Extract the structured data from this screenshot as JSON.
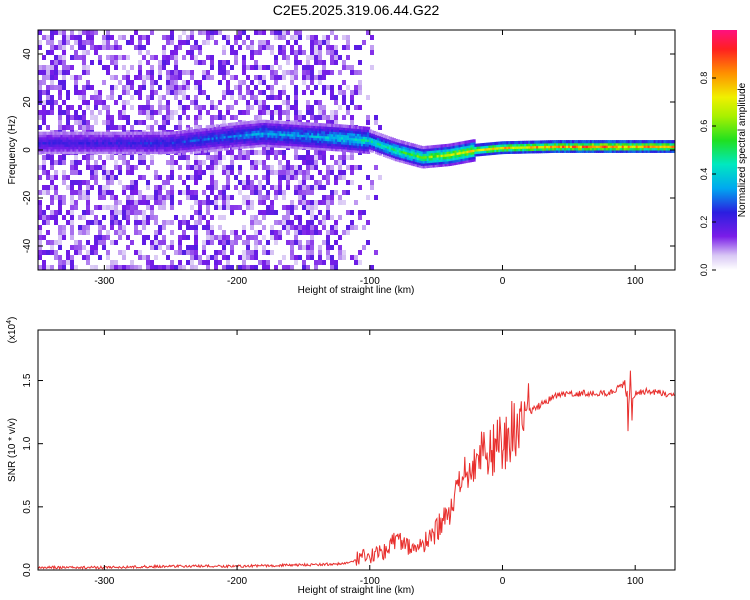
{
  "title": "C2E5.2025.319.06.44.G22",
  "chart_data": [
    {
      "type": "heatmap",
      "panel": "spectrogram",
      "xlabel": "Height of straight line (km)",
      "ylabel": "Frequency (Hz)",
      "xlim": [
        -350,
        130
      ],
      "ylim": [
        -50,
        50
      ],
      "x_ticks": [
        -300,
        -200,
        -100,
        0,
        100
      ],
      "x_tick_labels": [
        "-300",
        "-200",
        "-100",
        "0",
        "100"
      ],
      "y_ticks": [
        -40,
        -20,
        0,
        20,
        40
      ],
      "y_tick_labels": [
        "-40",
        "-20",
        "0",
        "20",
        "40"
      ],
      "ridge": {
        "x": [
          -350,
          -300,
          -250,
          -200,
          -180,
          -150,
          -120,
          -100,
          -80,
          -60,
          -40,
          -20,
          0,
          40,
          80,
          100,
          130
        ],
        "y": [
          3,
          3,
          3,
          6,
          7,
          6,
          5,
          4,
          0,
          -3,
          -2,
          0,
          1,
          1.5,
          1.5,
          1.5,
          1.5
        ],
        "amplitude": [
          0.25,
          0.25,
          0.28,
          0.35,
          0.4,
          0.38,
          0.45,
          0.5,
          0.55,
          0.65,
          0.75,
          0.8,
          0.85,
          0.9,
          0.95,
          0.9,
          0.9
        ]
      },
      "colorbar": {
        "label": "Normalized spectral amplitude",
        "range": [
          0,
          1
        ],
        "ticks": [
          0,
          0.2,
          0.4,
          0.6,
          0.8
        ],
        "tick_labels": [
          "0.0",
          "0.2",
          "0.4",
          "0.6",
          "0.8"
        ]
      }
    },
    {
      "type": "line",
      "panel": "snr",
      "xlabel": "Height of straight line (km)",
      "ylabel": "SNR (10 * v/v)",
      "scale_label": "(x10",
      "scale_exp": "4",
      "scale_close": ")",
      "xlim": [
        -350,
        130
      ],
      "ylim": [
        0,
        1.9
      ],
      "x_ticks": [
        -300,
        -200,
        -100,
        0,
        100
      ],
      "x_tick_labels": [
        "-300",
        "-200",
        "-100",
        "0",
        "100"
      ],
      "y_ticks": [
        0,
        0.5,
        1.0,
        1.5
      ],
      "y_tick_labels": [
        "0.0",
        "0.5",
        "1.0",
        "1.5"
      ],
      "color": "#e8302e",
      "series": [
        {
          "name": "SNR",
          "x": [
            -350,
            -300,
            -250,
            -200,
            -150,
            -120,
            -100,
            -90,
            -80,
            -70,
            -60,
            -50,
            -40,
            -30,
            -20,
            -10,
            0,
            10,
            20,
            40,
            60,
            80,
            90,
            95,
            100,
            110,
            120,
            130
          ],
          "y": [
            0.02,
            0.02,
            0.03,
            0.03,
            0.04,
            0.05,
            0.1,
            0.15,
            0.25,
            0.18,
            0.2,
            0.3,
            0.45,
            0.7,
            0.9,
            0.95,
            1.0,
            1.15,
            1.25,
            1.38,
            1.4,
            1.4,
            1.45,
            1.3,
            1.4,
            1.42,
            1.4,
            1.38
          ]
        }
      ]
    }
  ]
}
